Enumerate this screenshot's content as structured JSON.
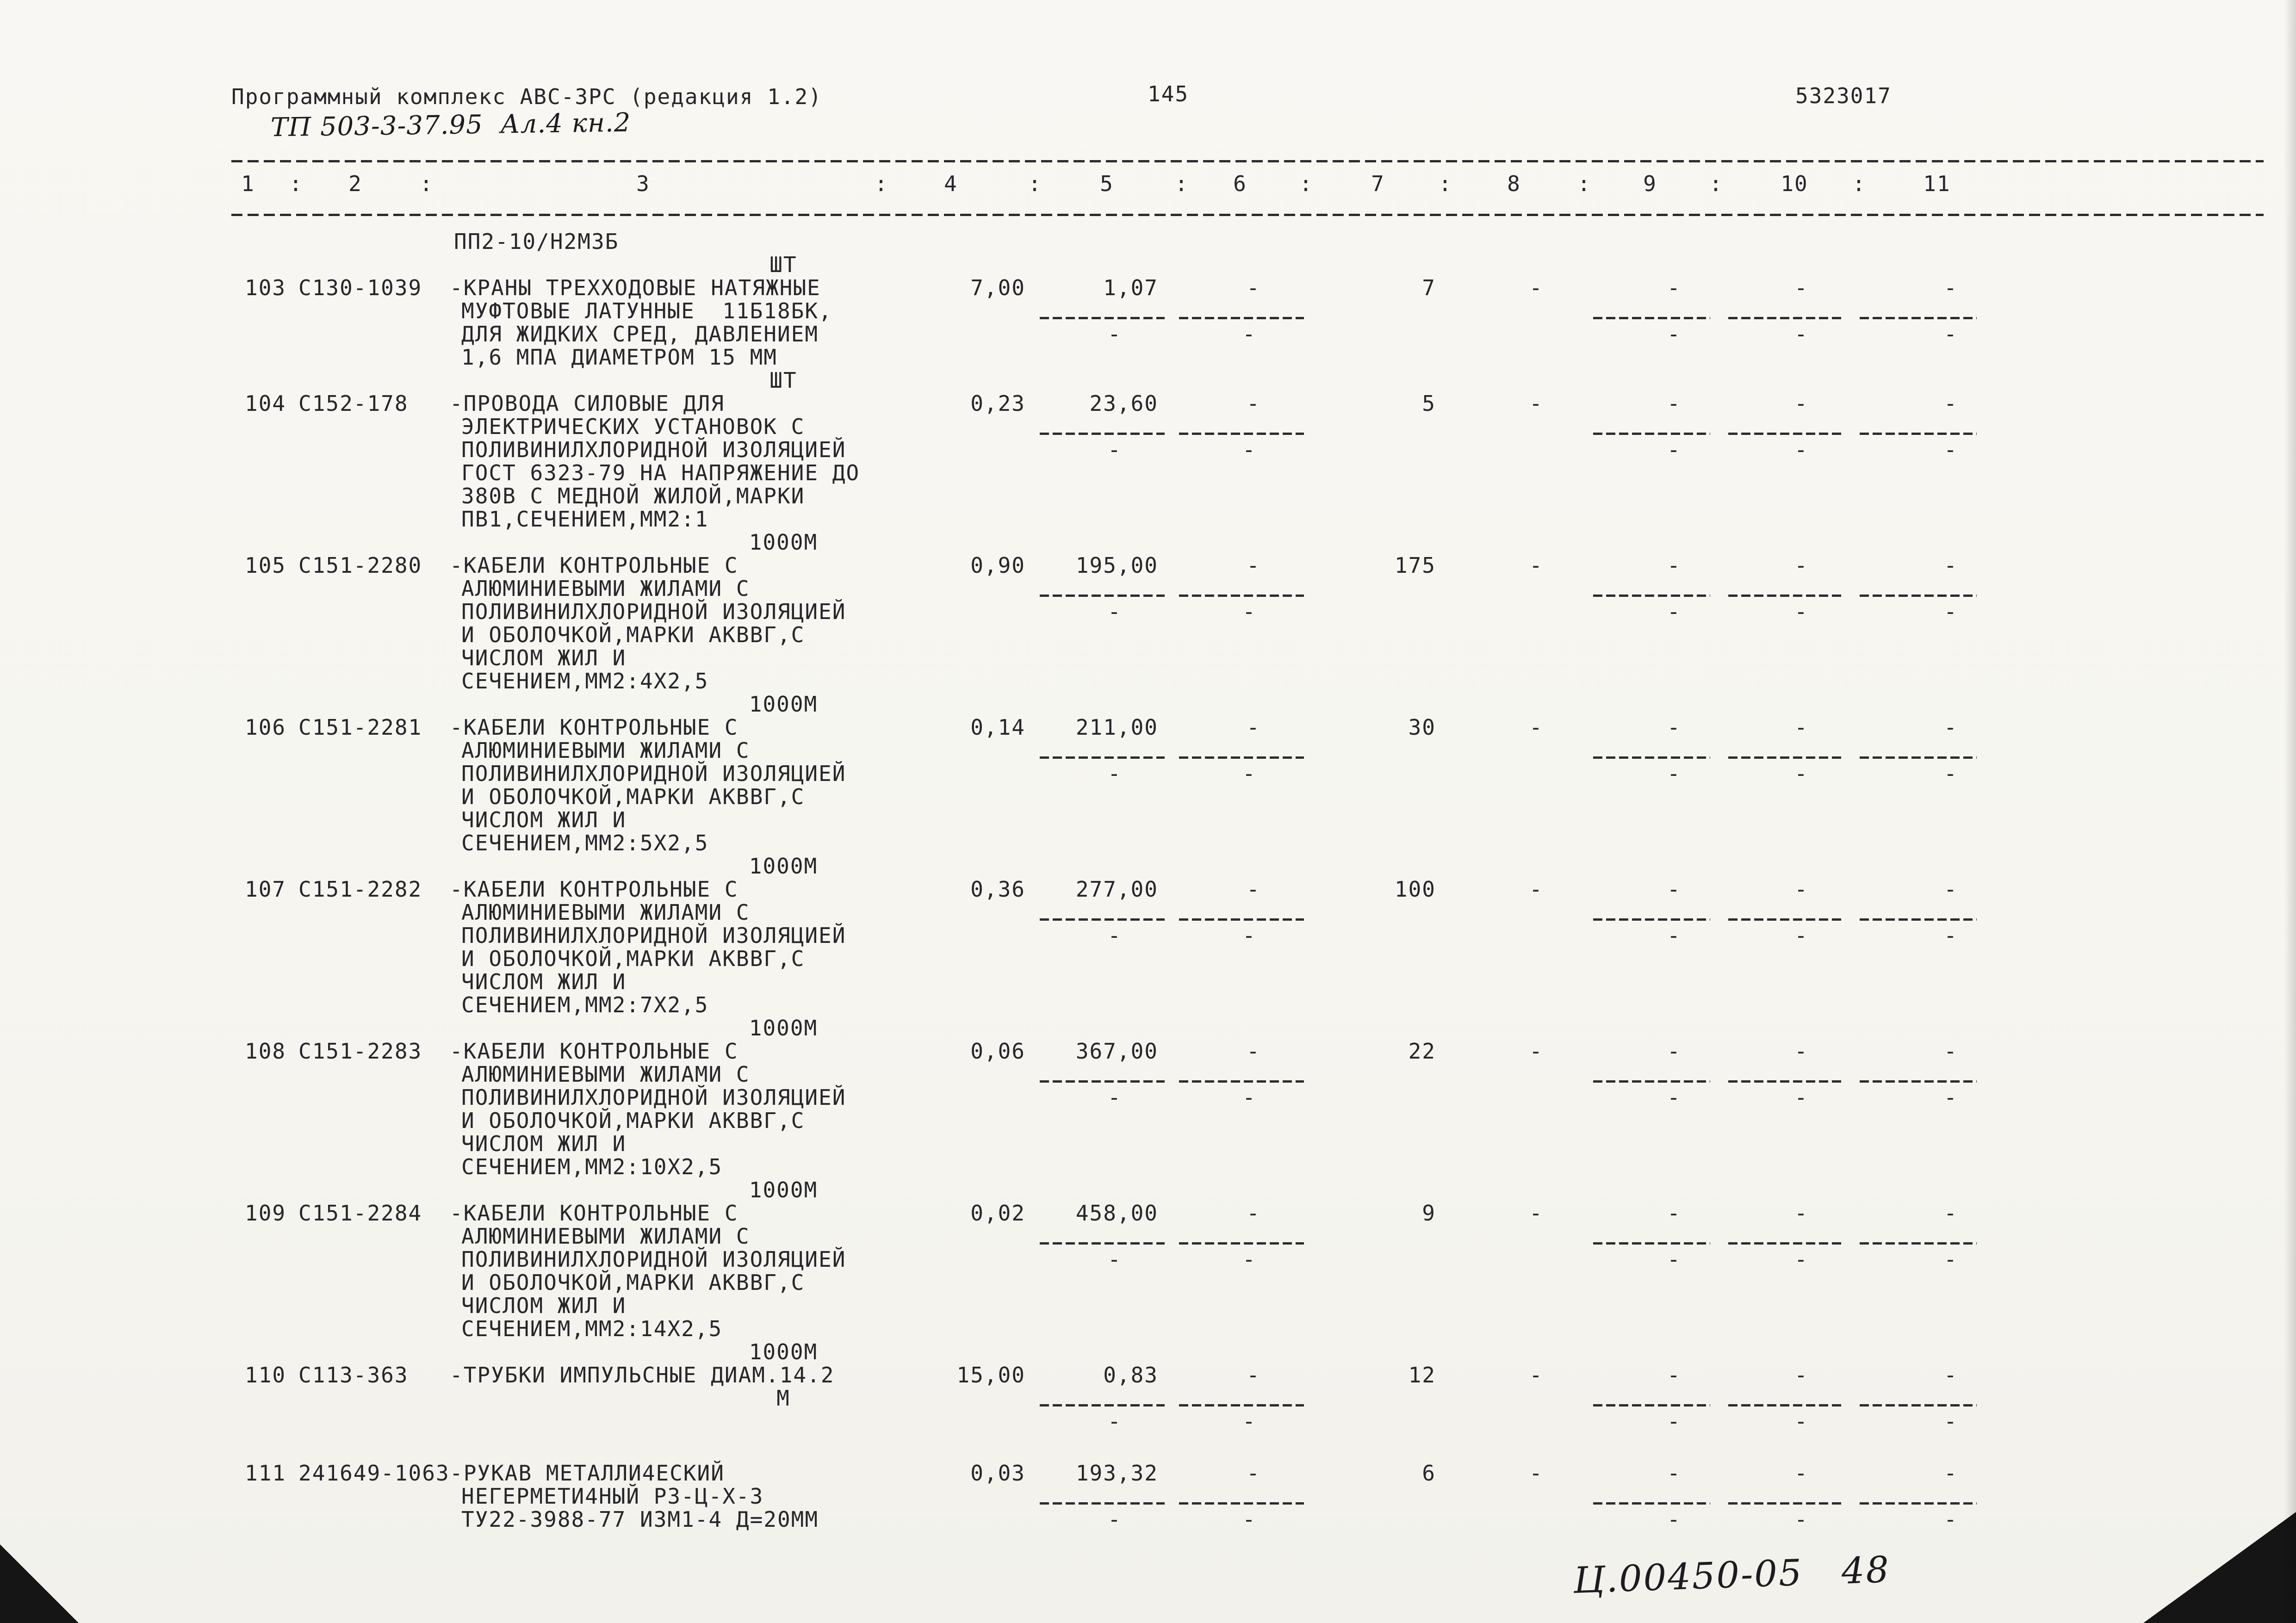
{
  "page": {
    "header_left": "Программный комплекс АВС-3РС (редакция 1.2)",
    "page_number": "145",
    "doc_number": "5323017",
    "handwritten_top": "ТП 503-3-37.95  Ал.4 кн.2",
    "handwritten_bottom": "Ц.00450-05   48"
  },
  "table": {
    "column_headers": [
      "1",
      "2",
      "3",
      "4",
      "5",
      "6",
      "7",
      "8",
      "9",
      "10",
      "11"
    ],
    "column_separator": ":",
    "dash": "-",
    "carryover": {
      "desc_lines": [
        "ПП2-10/Н2М3Б"
      ],
      "unit": "ШТ"
    },
    "rows": [
      {
        "num": "103",
        "code": "С130-1039",
        "desc": [
          "-КРАНЫ ТРЕХХОДОВЫЕ НАТЯЖНЫЕ",
          "МУФТОВЫЕ ЛАТУННЫЕ  11Б18БК,",
          "ДЛЯ ЖИДКИХ СРЕД, ДАВЛЕНИЕМ",
          "1,6 МПА ДИАМЕТРОМ 15 ММ"
        ],
        "unit": "ШТ",
        "values": {
          "c4": "7,00",
          "c5": "1,07",
          "c6": "-",
          "c7": "7",
          "c8": "-",
          "c9": "-",
          "c10": "-",
          "c11": "-"
        }
      },
      {
        "num": "104",
        "code": "С152-178",
        "desc": [
          "-ПРОВОДА СИЛОВЫЕ ДЛЯ",
          "ЭЛЕКТРИЧЕСКИХ УСТАНОВОК С",
          "ПОЛИВИНИЛХЛОРИДНОЙ ИЗОЛЯЦИЕЙ",
          "ГОСТ 6323-79 НА НАПРЯЖЕНИЕ ДО",
          "380В С МЕДНОЙ ЖИЛОЙ,МАРКИ",
          "ПВ1,СЕЧЕНИЕМ,ММ2:1"
        ],
        "unit": "1000М",
        "values": {
          "c4": "0,23",
          "c5": "23,60",
          "c6": "-",
          "c7": "5",
          "c8": "-",
          "c9": "-",
          "c10": "-",
          "c11": "-"
        }
      },
      {
        "num": "105",
        "code": "С151-2280",
        "desc": [
          "-КАБЕЛИ КОНТРОЛЬНЫЕ С",
          "АЛЮМИНИЕВЫМИ ЖИЛАМИ С",
          "ПОЛИВИНИЛХЛОРИДНОЙ ИЗОЛЯЦИЕЙ",
          "И ОБОЛОЧКОЙ,МАРКИ АКВВГ,С",
          "ЧИСЛОМ ЖИЛ И",
          "СЕЧЕНИЕМ,ММ2:4Х2,5"
        ],
        "unit": "1000М",
        "values": {
          "c4": "0,90",
          "c5": "195,00",
          "c6": "-",
          "c7": "175",
          "c8": "-",
          "c9": "-",
          "c10": "-",
          "c11": "-"
        }
      },
      {
        "num": "106",
        "code": "С151-2281",
        "desc": [
          "-КАБЕЛИ КОНТРОЛЬНЫЕ С",
          "АЛЮМИНИЕВЫМИ ЖИЛАМИ С",
          "ПОЛИВИНИЛХЛОРИДНОЙ ИЗОЛЯЦИЕЙ",
          "И ОБОЛОЧКОЙ,МАРКИ АКВВГ,С",
          "ЧИСЛОМ ЖИЛ И",
          "СЕЧЕНИЕМ,ММ2:5Х2,5"
        ],
        "unit": "1000М",
        "values": {
          "c4": "0,14",
          "c5": "211,00",
          "c6": "-",
          "c7": "30",
          "c8": "-",
          "c9": "-",
          "c10": "-",
          "c11": "-"
        }
      },
      {
        "num": "107",
        "code": "С151-2282",
        "desc": [
          "-КАБЕЛИ КОНТРОЛЬНЫЕ С",
          "АЛЮМИНИЕВЫМИ ЖИЛАМИ С",
          "ПОЛИВИНИЛХЛОРИДНОЙ ИЗОЛЯЦИЕЙ",
          "И ОБОЛОЧКОЙ,МАРКИ АКВВГ,С",
          "ЧИСЛОМ ЖИЛ И",
          "СЕЧЕНИЕМ,ММ2:7Х2,5"
        ],
        "unit": "1000М",
        "values": {
          "c4": "0,36",
          "c5": "277,00",
          "c6": "-",
          "c7": "100",
          "c8": "-",
          "c9": "-",
          "c10": "-",
          "c11": "-"
        }
      },
      {
        "num": "108",
        "code": "С151-2283",
        "desc": [
          "-КАБЕЛИ КОНТРОЛЬНЫЕ С",
          "АЛЮМИНИЕВЫМИ ЖИЛАМИ С",
          "ПОЛИВИНИЛХЛОРИДНОЙ ИЗОЛЯЦИЕЙ",
          "И ОБОЛОЧКОЙ,МАРКИ АКВВГ,С",
          "ЧИСЛОМ ЖИЛ И",
          "СЕЧЕНИЕМ,ММ2:10Х2,5"
        ],
        "unit": "1000М",
        "values": {
          "c4": "0,06",
          "c5": "367,00",
          "c6": "-",
          "c7": "22",
          "c8": "-",
          "c9": "-",
          "c10": "-",
          "c11": "-"
        }
      },
      {
        "num": "109",
        "code": "С151-2284",
        "desc": [
          "-КАБЕЛИ КОНТРОЛЬНЫЕ С",
          "АЛЮМИНИЕВЫМИ ЖИЛАМИ С",
          "ПОЛИВИНИЛХЛОРИДНОЙ ИЗОЛЯЦИЕЙ",
          "И ОБОЛОЧКОЙ,МАРКИ АКВВГ,С",
          "ЧИСЛОМ ЖИЛ И",
          "СЕЧЕНИЕМ,ММ2:14Х2,5"
        ],
        "unit": "1000М",
        "values": {
          "c4": "0,02",
          "c5": "458,00",
          "c6": "-",
          "c7": "9",
          "c8": "-",
          "c9": "-",
          "c10": "-",
          "c11": "-"
        }
      },
      {
        "num": "110",
        "code": "С113-363",
        "desc": [
          "-ТРУБКИ ИМПУЛЬСНЫЕ ДИАМ.14.2"
        ],
        "unit": "М",
        "values": {
          "c4": "15,00",
          "c5": "0,83",
          "c6": "-",
          "c7": "12",
          "c8": "-",
          "c9": "-",
          "c10": "-",
          "c11": "-"
        }
      },
      {
        "num": "111",
        "code": "241649-1063",
        "gap_before": true,
        "desc": [
          "-РУКАВ МЕТАЛЛИ4ЕСКИЙ",
          "НЕГЕРМЕТИ4НЫЙ Р3-Ц-Х-3",
          "ТУ22-3988-77 ИЗМ1-4 Д=20ММ"
        ],
        "values": {
          "c4": "0,03",
          "c5": "193,32",
          "c6": "-",
          "c7": "6",
          "c8": "-",
          "c9": "-",
          "c10": "-",
          "c11": "-"
        }
      }
    ]
  }
}
